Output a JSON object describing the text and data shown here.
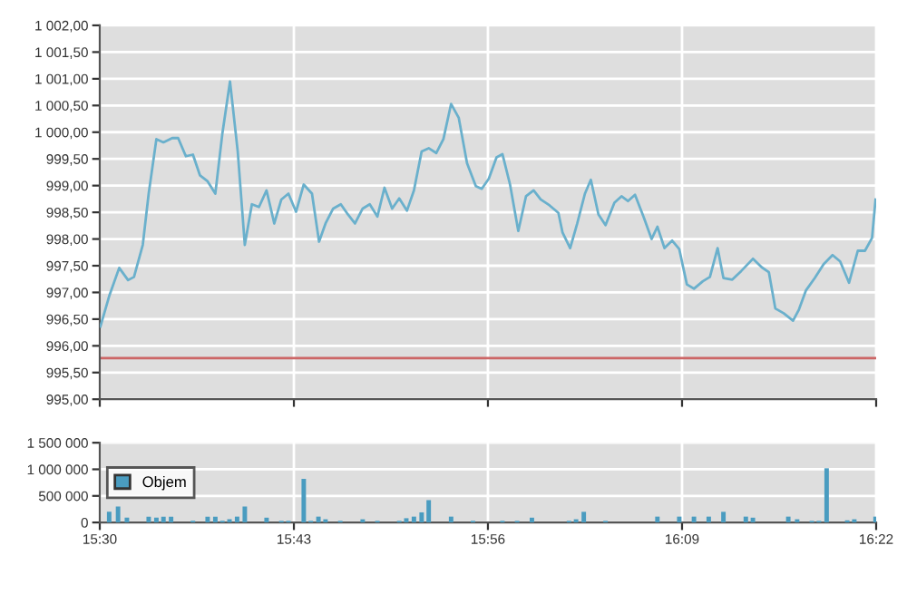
{
  "chart_data": [
    {
      "type": "line",
      "x": [
        15.5007,
        15.5105,
        15.5217,
        15.5316,
        15.5382,
        15.548,
        15.5546,
        15.5632,
        15.5711,
        15.5809,
        15.5875,
        15.5961,
        15.604,
        15.6119,
        15.6204,
        15.629,
        15.6369,
        15.6454,
        15.654,
        15.6619,
        15.6698,
        15.6777,
        15.6862,
        15.6948,
        15.7027,
        15.7106,
        15.7191,
        15.7277,
        15.7369,
        15.7448,
        15.752,
        15.7606,
        15.7691,
        15.777,
        15.7849,
        15.7935,
        15.8014,
        15.8099,
        15.8178,
        15.8264,
        15.8343,
        15.8429,
        15.8507,
        15.8593,
        15.8672,
        15.8757,
        15.8836,
        15.8922,
        15.9007,
        15.91,
        15.9198,
        15.9264,
        15.9343,
        15.9429,
        15.9495,
        15.958,
        15.9672,
        15.9758,
        15.9843,
        15.9922,
        16.0021,
        16.012,
        16.0166,
        16.0251,
        16.033,
        16.0416,
        16.0482,
        16.0567,
        16.0646,
        16.0745,
        16.0824,
        16.0896,
        16.0975,
        16.1074,
        16.116,
        16.1225,
        16.1304,
        16.139,
        16.1469,
        16.1554,
        16.1633,
        16.1732,
        16.1811,
        16.1897,
        16.1962,
        16.2061,
        16.216,
        16.2291,
        16.239,
        16.2469,
        16.2541,
        16.2634,
        16.2739,
        16.2805,
        16.2884,
        16.2982,
        16.3081,
        16.318,
        16.3265,
        16.3364,
        16.3462,
        16.3542,
        16.3621,
        16.366
      ],
      "series": [
        {
          "color": "#6ab0cc",
          "values": [
            996.36,
            996.93,
            997.46,
            997.23,
            997.29,
            997.89,
            998.85,
            999.87,
            999.81,
            999.89,
            999.89,
            999.55,
            999.58,
            999.19,
            999.08,
            998.85,
            999.98,
            1000.95,
            999.64,
            997.89,
            998.65,
            998.6,
            998.91,
            998.29,
            998.74,
            998.85,
            998.51,
            999.02,
            998.85,
            997.95,
            998.29,
            998.57,
            998.65,
            998.46,
            998.29,
            998.57,
            998.65,
            998.42,
            998.96,
            998.57,
            998.76,
            998.53,
            998.91,
            999.64,
            999.7,
            999.61,
            999.87,
            1000.53,
            1000.27,
            999.42,
            998.99,
            998.94,
            999.13,
            999.53,
            999.59,
            999.02,
            998.15,
            998.8,
            998.91,
            998.74,
            998.63,
            998.49,
            998.12,
            997.83,
            998.29,
            998.85,
            999.11,
            998.46,
            998.26,
            998.68,
            998.8,
            998.71,
            998.83,
            998.4,
            998.0,
            998.23,
            997.83,
            997.97,
            997.81,
            997.15,
            997.07,
            997.21,
            997.29,
            997.83,
            997.27,
            997.24,
            997.4,
            997.63,
            997.47,
            997.38,
            996.7,
            996.61,
            996.47,
            996.68,
            997.04,
            997.27,
            997.53,
            997.7,
            997.58,
            997.18,
            997.78,
            997.78,
            998.02,
            998.74
          ]
        }
      ],
      "xlim": [
        15.5,
        16.3667
      ],
      "xticks": [
        {
          "value": 15.5,
          "label": null
        },
        {
          "value": 15.7167,
          "label": null
        },
        {
          "value": 15.9333,
          "label": null
        },
        {
          "value": 16.15,
          "label": null
        },
        {
          "value": 16.3667,
          "label": null
        }
      ],
      "ylim": [
        995,
        1002
      ],
      "yticks": [
        {
          "value": 995,
          "label": "995,00"
        },
        {
          "value": 995.5,
          "label": "995,50"
        },
        {
          "value": 996,
          "label": "996,00"
        },
        {
          "value": 996.5,
          "label": "996,50"
        },
        {
          "value": 997,
          "label": "997,00"
        },
        {
          "value": 997.5,
          "label": "997,50"
        },
        {
          "value": 998,
          "label": "998,00"
        },
        {
          "value": 998.5,
          "label": "998,50"
        },
        {
          "value": 999,
          "label": "999,00"
        },
        {
          "value": 999.5,
          "label": "999,50"
        },
        {
          "value": 1000,
          "label": "1 000,00"
        },
        {
          "value": 1000.5,
          "label": "1 000,50"
        },
        {
          "value": 1001,
          "label": "1 001,00"
        },
        {
          "value": 1001.5,
          "label": "1 001,50"
        },
        {
          "value": 1002,
          "label": "1 002,00"
        }
      ],
      "ref_lines": [
        {
          "axis": "y",
          "value": 995.77,
          "color": "#cc6666"
        }
      ],
      "tick_labels": "y",
      "grid": true,
      "legend": false
    },
    {
      "type": "bar",
      "x": [
        15.5105,
        15.5204,
        15.5303,
        15.5546,
        15.5632,
        15.5711,
        15.5796,
        15.604,
        15.6204,
        15.629,
        15.6369,
        15.6448,
        15.6533,
        15.6619,
        15.6862,
        15.7027,
        15.7106,
        15.7277,
        15.7356,
        15.7441,
        15.752,
        15.7685,
        15.7935,
        15.8099,
        15.8343,
        15.8422,
        15.8507,
        15.8593,
        15.8672,
        15.8922,
        15.9166,
        15.9495,
        15.9659,
        15.9824,
        16.0238,
        16.0317,
        16.0403,
        16.0646,
        16.1225,
        16.1469,
        16.1633,
        16.1798,
        16.1962,
        16.2212,
        16.2291,
        16.2686,
        16.2785,
        16.2949,
        16.3028,
        16.3114,
        16.3344,
        16.3423,
        16.366
      ],
      "series": [
        {
          "name": "Objem",
          "color": "#4a9cc0",
          "values": [
            200000,
            300000,
            90000,
            110000,
            90000,
            110000,
            110000,
            30000,
            110000,
            110000,
            30000,
            60000,
            110000,
            300000,
            90000,
            30000,
            30000,
            820000,
            30000,
            110000,
            60000,
            30000,
            60000,
            30000,
            30000,
            80000,
            110000,
            190000,
            420000,
            110000,
            30000,
            30000,
            30000,
            90000,
            30000,
            60000,
            200000,
            30000,
            110000,
            110000,
            110000,
            110000,
            200000,
            110000,
            90000,
            110000,
            60000,
            30000,
            30000,
            1020000,
            40000,
            60000,
            110000
          ]
        }
      ],
      "xlim": [
        15.5,
        16.3667
      ],
      "xticks": [
        {
          "value": 15.5,
          "label": "15:30"
        },
        {
          "value": 15.7167,
          "label": "15:43"
        },
        {
          "value": 15.9333,
          "label": "15:56"
        },
        {
          "value": 16.15,
          "label": "16:09"
        },
        {
          "value": 16.3667,
          "label": "16:22"
        }
      ],
      "ylim": [
        0,
        1500000
      ],
      "yticks": [
        {
          "value": 0,
          "label": "0"
        },
        {
          "value": 500000,
          "label": "500 000"
        },
        {
          "value": 1000000,
          "label": "1 000 000"
        },
        {
          "value": 1500000,
          "label": "1 500 000"
        }
      ],
      "grid": true,
      "legend": "left"
    }
  ]
}
